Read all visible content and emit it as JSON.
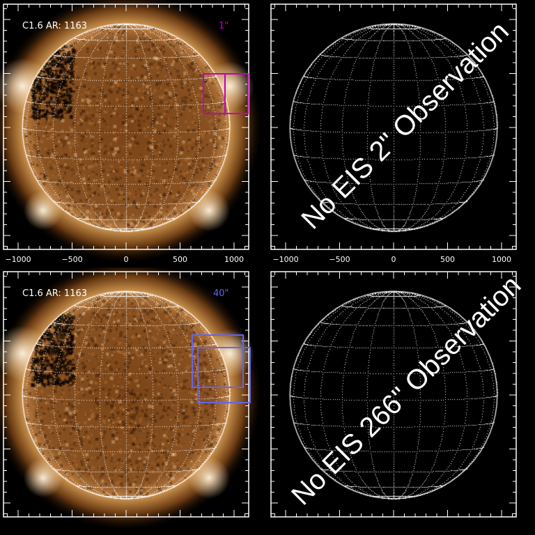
{
  "chart_data": [
    {
      "type": "image",
      "panel": "top-left",
      "label": "C1.6 AR: 1163",
      "fov_label": "1\"",
      "fov_color": "#c000c0",
      "boxes": [
        {
          "x": [
            716,
            916
          ],
          "y": [
            129,
            497
          ]
        },
        {
          "x": [
            916,
            1129
          ],
          "y": [
            129,
            497
          ]
        }
      ],
      "footer_text": "",
      "xlim": [
        -1150,
        1150
      ],
      "ylim": [
        -1150,
        1150
      ],
      "xticks": [
        "-1000",
        "-500",
        "0",
        "500",
        "1000"
      ],
      "yticks": [],
      "solar_grid": true
    },
    {
      "type": "image",
      "panel": "top-right",
      "annotation": "No EIS 2\" Observation",
      "xlim": [
        -1150,
        1150
      ],
      "ylim": [
        -1150,
        1150
      ],
      "xticks": [
        "-1000",
        "-500",
        "0",
        "500",
        "1000"
      ],
      "yticks": [
        "1000",
        "500",
        "0",
        "-500",
        "-1000"
      ],
      "solar_grid": true
    },
    {
      "type": "image",
      "panel": "bottom-left",
      "label": "C1.6 AR: 1163",
      "fov_label": "40\"",
      "fov_color": "#6464f0",
      "boxes": [
        {
          "x": [
            613,
            1084
          ],
          "y": [
            71,
            555
          ]
        },
        {
          "x": [
            665,
            1148
          ],
          "y": [
            -71,
            439
          ]
        }
      ],
      "xlim": [
        -1150,
        1150
      ],
      "ylim": [
        -1150,
        1150
      ],
      "xticks": [],
      "yticks": [],
      "solar_grid": true
    },
    {
      "type": "image",
      "panel": "bottom-right",
      "annotation": "No EIS 266\" Observation",
      "xlim": [
        -1150,
        1150
      ],
      "ylim": [
        -1150,
        1150
      ],
      "xticks": [],
      "yticks": [
        "1000",
        "500",
        "0",
        "-500",
        "-1000"
      ],
      "solar_grid": true
    }
  ],
  "solar_radius_arcsec": 960
}
